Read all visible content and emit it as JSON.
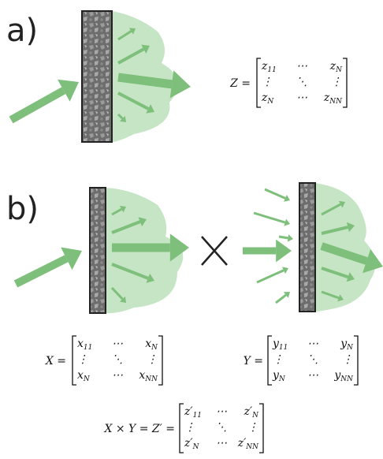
{
  "labels": [
    "a)",
    "b)"
  ],
  "equations": [
    {
      "lhs": "Z =",
      "rows": [
        [
          {
            "b": "z",
            "s": "11"
          },
          "⋯",
          {
            "b": "z",
            "s": "N"
          }
        ],
        [
          "⋮",
          "⋱",
          "⋮"
        ],
        [
          {
            "b": "z",
            "s": "N"
          },
          "⋯",
          {
            "b": "z",
            "s": "NN"
          }
        ]
      ]
    },
    {
      "lhs": "X =",
      "rows": [
        [
          {
            "b": "x",
            "s": "11"
          },
          "⋯",
          {
            "b": "x",
            "s": "N"
          }
        ],
        [
          "⋮",
          "⋱",
          "⋮"
        ],
        [
          {
            "b": "x",
            "s": "N"
          },
          "⋯",
          {
            "b": "x",
            "s": "NN"
          }
        ]
      ]
    },
    {
      "lhs": "Y =",
      "rows": [
        [
          {
            "b": "y",
            "s": "11"
          },
          "⋯",
          {
            "b": "y",
            "s": "N"
          }
        ],
        [
          "⋮",
          "⋱",
          "⋮"
        ],
        [
          {
            "b": "y",
            "s": "N"
          },
          "⋯",
          {
            "b": "y",
            "s": "NN"
          }
        ]
      ]
    },
    {
      "lhs": "X × Y = Z′ =",
      "rows": [
        [
          {
            "b": "z′",
            "s": "11"
          },
          "⋯",
          {
            "b": "z′",
            "s": "N"
          }
        ],
        [
          "⋮",
          "⋱",
          "⋮"
        ],
        [
          {
            "b": "z′",
            "s": "N"
          },
          "⋯",
          {
            "b": "z′",
            "s": "NN"
          }
        ]
      ]
    }
  ]
}
